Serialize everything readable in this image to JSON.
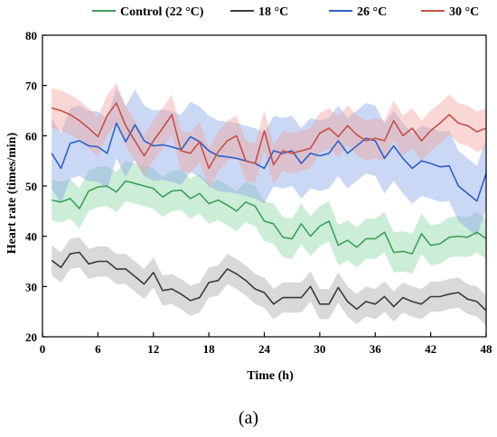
{
  "caption": "(a)",
  "chart_data": {
    "type": "line",
    "xlabel": "Time (h)",
    "ylabel": "Heart rate (times/min)",
    "xlim": [
      0,
      48
    ],
    "ylim": [
      20,
      80
    ],
    "xticks": [
      0,
      6,
      12,
      18,
      24,
      30,
      36,
      42,
      48
    ],
    "yticks": [
      20,
      30,
      40,
      50,
      60,
      70,
      80
    ],
    "grid": false,
    "legend_position": "top",
    "x": [
      1,
      2,
      3,
      4,
      5,
      6,
      7,
      8,
      9,
      10,
      11,
      12,
      13,
      14,
      15,
      16,
      17,
      18,
      19,
      20,
      21,
      22,
      23,
      24,
      25,
      26,
      27,
      28,
      29,
      30,
      31,
      32,
      33,
      34,
      35,
      36,
      37,
      38,
      39,
      40,
      41,
      42,
      43,
      44,
      45,
      46,
      47,
      48
    ],
    "series": [
      {
        "name": "Control (22 °C)",
        "color": "#3fa05a",
        "band_color": "#8fd6a6",
        "values": [
          47.2,
          46.8,
          47.5,
          45.5,
          49,
          49.8,
          50,
          48.8,
          51,
          50.5,
          50,
          49.5,
          47.8,
          49,
          49.2,
          47.5,
          48.5,
          46.5,
          47.2,
          46.2,
          45,
          46.8,
          46,
          43,
          42.5,
          39.8,
          39.5,
          42.5,
          40,
          42,
          43,
          38.2,
          39.2,
          37.8,
          39.5,
          39.5,
          40.8,
          36.8,
          37,
          36.5,
          40.5,
          38.2,
          38.5,
          39.8,
          40,
          39.8,
          40.8,
          39.5
        ],
        "spread": 4
      },
      {
        "name": "18 °C",
        "color": "#3a3a3a",
        "band_color": "#aaaaaa",
        "values": [
          35.2,
          33.8,
          36.5,
          36.8,
          34.5,
          35,
          35,
          33.5,
          33.5,
          32,
          30.5,
          32.8,
          29.2,
          29.5,
          28.5,
          27.2,
          27.8,
          30.8,
          31.2,
          33.5,
          32.5,
          31.2,
          29.5,
          28.8,
          26.5,
          27.8,
          27.8,
          27.8,
          30,
          26.5,
          26.5,
          29.8,
          27,
          25.5,
          27,
          26.5,
          28,
          26,
          27.8,
          27,
          26.5,
          28,
          28,
          28.5,
          28.8,
          27.5,
          27,
          25.2
        ],
        "spread": 3
      },
      {
        "name": "26 °C",
        "color": "#3060c8",
        "band_color": "#8aa8e8",
        "values": [
          56.5,
          53.5,
          58.5,
          59,
          58,
          57.8,
          56.5,
          62.5,
          58.8,
          62.2,
          59,
          58,
          58.2,
          57.8,
          57.2,
          59.8,
          58.8,
          57,
          56,
          55.8,
          55.5,
          55,
          54.5,
          53.5,
          57,
          56.5,
          57,
          54.5,
          56.5,
          56,
          56.5,
          59,
          56.5,
          58,
          59.5,
          59,
          55.5,
          58,
          55.5,
          53.5,
          55,
          54.5,
          53.8,
          54,
          50,
          48.5,
          47,
          52.5
        ],
        "spread": 7
      },
      {
        "name": "30 °C",
        "color": "#c85045",
        "band_color": "#f0a6a0",
        "values": [
          65.5,
          65,
          64.2,
          63,
          61.5,
          59.8,
          64,
          66.5,
          62,
          59,
          56,
          59,
          61.5,
          64.2,
          57,
          56.5,
          58.8,
          53.5,
          56.8,
          59,
          60,
          55,
          54.5,
          61,
          54.2,
          57,
          56.5,
          57,
          57.5,
          60.5,
          61.5,
          59.8,
          62,
          60.2,
          59,
          59.5,
          59,
          63,
          60,
          61.5,
          59,
          61,
          62.5,
          64.2,
          62.5,
          62,
          60.8,
          61.5
        ],
        "spread": 4
      }
    ]
  }
}
